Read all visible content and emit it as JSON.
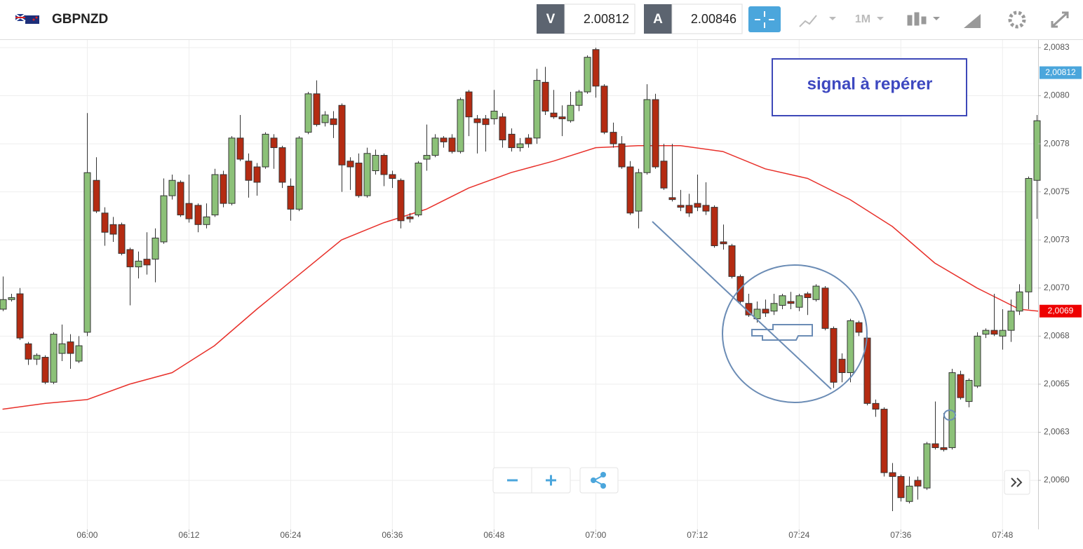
{
  "toolbar": {
    "symbol": "GBPNZD",
    "bid_label": "V",
    "bid": 2.00812,
    "ask_label": "A",
    "ask": 2.00846,
    "timeframe": "1M"
  },
  "chart_data": {
    "type": "candlestick",
    "x": [
      350,
      351,
      352,
      353,
      354,
      355,
      356,
      357,
      358,
      359,
      360,
      361,
      362,
      363,
      364,
      365,
      366,
      367,
      368,
      369,
      370,
      371,
      372,
      373,
      374,
      375,
      376,
      377,
      378,
      379,
      380,
      381,
      382,
      383,
      384,
      385,
      386,
      387,
      388,
      389,
      390,
      391,
      392,
      393,
      394,
      395,
      396,
      397,
      398,
      399,
      400,
      401,
      402,
      403,
      404,
      405,
      406,
      407,
      408,
      409,
      410,
      411,
      412,
      413,
      414,
      415,
      416,
      417,
      418,
      419,
      420,
      421,
      422,
      423,
      424,
      425,
      426,
      427,
      428,
      429,
      430,
      431,
      432,
      433,
      434,
      435,
      436,
      437,
      438,
      439,
      440,
      441,
      442,
      443,
      444,
      445,
      446,
      447,
      448,
      449,
      450,
      451,
      452,
      453,
      454,
      455,
      456,
      457,
      458,
      459,
      460,
      461,
      462,
      463,
      464,
      465,
      466,
      467,
      468,
      469,
      470,
      471,
      472
    ],
    "open": [
      2.00689,
      2.00694,
      2.00697,
      2.00671,
      2.00663,
      2.00664,
      2.00651,
      2.00666,
      2.00672,
      2.00662,
      2.00677,
      2.00756,
      2.00739,
      2.00733,
      2.00733,
      2.0072,
      2.00711,
      2.00715,
      2.00715,
      2.00724,
      2.00748,
      2.00755,
      2.00744,
      2.00743,
      2.00733,
      2.00738,
      2.00759,
      2.00744,
      2.00778,
      2.00766,
      2.00763,
      2.00763,
      2.00778,
      2.00773,
      2.00753,
      2.00741,
      2.00781,
      2.00801,
      2.00786,
      2.00788,
      2.00795,
      2.00766,
      2.00765,
      2.00748,
      2.00761,
      2.00769,
      2.00759,
      2.00756,
      2.00737,
      2.00738,
      2.00767,
      2.00769,
      2.00778,
      2.00778,
      2.00771,
      2.00802,
      2.00788,
      2.00788,
      2.00788,
      2.00789,
      2.0078,
      2.00773,
      2.00778,
      2.00778,
      2.00807,
      2.00791,
      2.00789,
      2.00787,
      2.00795,
      2.00802,
      2.00824,
      2.00805,
      2.00781,
      2.00775,
      2.00763,
      2.0074,
      2.0076,
      2.00798,
      2.00766,
      2.00747,
      2.00743,
      2.00743,
      2.00744,
      2.00743,
      2.00742,
      2.00724,
      2.00722,
      2.00706,
      2.00692,
      2.00684,
      2.00689,
      2.00688,
      2.00691,
      2.00693,
      2.0069,
      2.00697,
      2.00694,
      2.007,
      2.00679,
      2.00663,
      2.00656,
      2.00682,
      2.00674,
      2.0064,
      2.00637,
      2.00604,
      2.00602,
      2.00589,
      2.006,
      2.00596,
      2.00619,
      2.00617,
      2.00617,
      2.00655,
      2.00641,
      2.00649,
      2.00676,
      2.00678,
      2.00675,
      2.00678,
      2.00688,
      2.00698,
      2.00756
    ],
    "high": [
      2.00706,
      2.00697,
      2.007,
      2.00672,
      2.00666,
      2.00665,
      2.00677,
      2.00681,
      2.00676,
      2.00675,
      2.00791,
      2.00768,
      2.00742,
      2.00737,
      2.00734,
      2.00721,
      2.00719,
      2.00729,
      2.00731,
      2.00757,
      2.00759,
      2.00756,
      2.00759,
      2.00744,
      2.00744,
      2.00762,
      2.00761,
      2.00779,
      2.0079,
      2.0077,
      2.00765,
      2.00781,
      2.0078,
      2.00774,
      2.00757,
      2.00779,
      2.00802,
      2.00808,
      2.00792,
      2.00792,
      2.00796,
      2.00768,
      2.0077,
      2.00773,
      2.00772,
      2.0077,
      2.00761,
      2.00757,
      2.00739,
      2.00766,
      2.00785,
      2.0078,
      2.00779,
      2.0078,
      2.00799,
      2.00803,
      2.0079,
      2.0079,
      2.00803,
      2.00791,
      2.00783,
      2.00778,
      2.0078,
      2.00814,
      2.00815,
      2.00803,
      2.00795,
      2.00802,
      2.00803,
      2.00821,
      2.00825,
      2.00806,
      2.00786,
      2.00779,
      2.00766,
      2.00762,
      2.00806,
      2.00801,
      2.00775,
      2.00775,
      2.00751,
      2.00749,
      2.00759,
      2.00755,
      2.00743,
      2.00733,
      2.00723,
      2.00707,
      2.00697,
      2.00693,
      2.00694,
      2.00697,
      2.00697,
      2.00698,
      2.00697,
      2.00698,
      2.00702,
      2.00701,
      2.0068,
      2.00666,
      2.00684,
      2.00683,
      2.00675,
      2.00642,
      2.00638,
      2.00609,
      2.00603,
      2.00602,
      2.00602,
      2.0062,
      2.00641,
      2.00635,
      2.00658,
      2.00657,
      2.00653,
      2.00677,
      2.00679,
      2.00697,
      2.00689,
      2.00694,
      2.00702,
      2.00758,
      2.0079
    ],
    "low": [
      2.00688,
      2.00693,
      2.00673,
      2.0066,
      2.0066,
      2.0065,
      2.0065,
      2.00662,
      2.00658,
      2.00661,
      2.00675,
      2.00739,
      2.00722,
      2.00724,
      2.00717,
      2.00691,
      2.00705,
      2.00707,
      2.00703,
      2.00723,
      2.00746,
      2.00737,
      2.00734,
      2.00729,
      2.00731,
      2.00737,
      2.00742,
      2.00743,
      2.00766,
      2.00747,
      2.00748,
      2.00762,
      2.00762,
      2.00752,
      2.00735,
      2.0074,
      2.0078,
      2.00784,
      2.00784,
      2.00778,
      2.0075,
      2.00751,
      2.00747,
      2.00747,
      2.00759,
      2.00753,
      2.00752,
      2.00731,
      2.00734,
      2.00737,
      2.00761,
      2.00768,
      2.00773,
      2.0077,
      2.0077,
      2.00779,
      2.0077,
      2.00771,
      2.00785,
      2.00773,
      2.00771,
      2.00771,
      2.00773,
      2.00775,
      2.0079,
      2.00788,
      2.00779,
      2.00786,
      2.00792,
      2.00801,
      2.00799,
      2.0078,
      2.00773,
      2.00762,
      2.00738,
      2.00731,
      2.00759,
      2.00762,
      2.00751,
      2.00745,
      2.0074,
      2.00737,
      2.0074,
      2.00738,
      2.00721,
      2.0072,
      2.00705,
      2.00692,
      2.00685,
      2.00682,
      2.00685,
      2.00686,
      2.00689,
      2.00689,
      2.00688,
      2.00686,
      2.00693,
      2.00678,
      2.00648,
      2.00651,
      2.00651,
      2.00675,
      2.00639,
      2.00633,
      2.00602,
      2.00584,
      2.00589,
      2.00588,
      2.0059,
      2.00595,
      2.00616,
      2.00615,
      2.00616,
      2.00642,
      2.00638,
      2.00648,
      2.00674,
      2.00675,
      2.00668,
      2.00672,
      2.00686,
      2.00689,
      2.00736
    ],
    "close": [
      2.00694,
      2.00695,
      2.00674,
      2.00663,
      2.00665,
      2.00651,
      2.00676,
      2.00671,
      2.00666,
      2.0067,
      2.0076,
      2.0074,
      2.00729,
      2.00728,
      2.00718,
      2.00711,
      2.00714,
      2.00712,
      2.00726,
      2.00748,
      2.00756,
      2.00738,
      2.00736,
      2.00733,
      2.00737,
      2.00759,
      2.00744,
      2.00778,
      2.00767,
      2.00756,
      2.00755,
      2.0078,
      2.00773,
      2.00755,
      2.00741,
      2.00778,
      2.00801,
      2.00785,
      2.0079,
      2.00785,
      2.00764,
      2.00763,
      2.00748,
      2.0077,
      2.00769,
      2.00759,
      2.00757,
      2.00735,
      2.00736,
      2.00765,
      2.00769,
      2.00778,
      2.00776,
      2.00771,
      2.00798,
      2.00789,
      2.00786,
      2.00785,
      2.00792,
      2.00777,
      2.00773,
      2.00775,
      2.00775,
      2.00808,
      2.00792,
      2.00789,
      2.00788,
      2.00795,
      2.00802,
      2.0082,
      2.00805,
      2.00781,
      2.00775,
      2.00763,
      2.00739,
      2.0076,
      2.00798,
      2.00763,
      2.00752,
      2.00746,
      2.00742,
      2.00739,
      2.00742,
      2.0074,
      2.00722,
      2.00723,
      2.00706,
      2.00693,
      2.00686,
      2.00689,
      2.00687,
      2.00692,
      2.00696,
      2.00692,
      2.00696,
      2.00695,
      2.00701,
      2.00679,
      2.00651,
      2.00656,
      2.00683,
      2.00677,
      2.0064,
      2.00637,
      2.00604,
      2.00602,
      2.00591,
      2.00597,
      2.00597,
      2.00619,
      2.00617,
      2.00616,
      2.00656,
      2.00643,
      2.00652,
      2.00675,
      2.00678,
      2.00676,
      2.00678,
      2.00688,
      2.00698,
      2.00757,
      2.00787
    ],
    "up_color": "#8cc178",
    "down_color": "#b42b12",
    "moving_average": {
      "color": "#e8302a",
      "x": [
        350,
        355,
        360,
        365,
        370,
        375,
        380,
        385,
        390,
        395,
        400,
        405,
        410,
        415,
        420,
        425,
        430,
        435,
        440,
        445,
        450,
        455,
        460,
        465,
        470,
        472.2
      ],
      "values": [
        2.00637,
        2.0064,
        2.00642,
        2.0065,
        2.00656,
        2.0067,
        2.00689,
        2.00707,
        2.00725,
        2.00734,
        2.00741,
        2.00752,
        2.0076,
        2.00766,
        2.00773,
        2.00774,
        2.00774,
        2.00771,
        2.00762,
        2.00757,
        2.00746,
        2.00732,
        2.00713,
        2.007,
        2.00689,
        2.00688
      ]
    },
    "price_tags": [
      {
        "value": 2.00812,
        "label": "2,00812",
        "color": "#4ba6dc"
      },
      {
        "value": 2.00688,
        "label": "2,0069",
        "color": "#ee0000"
      }
    ],
    "annotation": "signal à repérer",
    "xlim": [
      349.7,
      472.2
    ],
    "xticks": [
      {
        "value": 360,
        "label": "06:00"
      },
      {
        "value": 372,
        "label": "06:12"
      },
      {
        "value": 384,
        "label": "06:24"
      },
      {
        "value": 396,
        "label": "06:36"
      },
      {
        "value": 408,
        "label": "06:48"
      },
      {
        "value": 420,
        "label": "07:00"
      },
      {
        "value": 432,
        "label": "07:12"
      },
      {
        "value": 444,
        "label": "07:24"
      },
      {
        "value": 456,
        "label": "07:36"
      },
      {
        "value": 468,
        "label": "07:48"
      }
    ],
    "ylim": [
      2.005745,
      2.00829
    ],
    "yticks": [
      {
        "value": 2.006,
        "label": "2,0060"
      },
      {
        "value": 2.00625,
        "label": "2,0063"
      },
      {
        "value": 2.0065,
        "label": "2,0065"
      },
      {
        "value": 2.00675,
        "label": "2,0068"
      },
      {
        "value": 2.007,
        "label": "2,0070"
      },
      {
        "value": 2.00725,
        "label": "2,0073"
      },
      {
        "value": 2.0075,
        "label": "2,0075"
      },
      {
        "value": 2.00775,
        "label": "2,0078"
      },
      {
        "value": 2.008,
        "label": "2,0080"
      },
      {
        "value": 2.00825,
        "label": "2,0083"
      }
    ],
    "grid": true
  }
}
